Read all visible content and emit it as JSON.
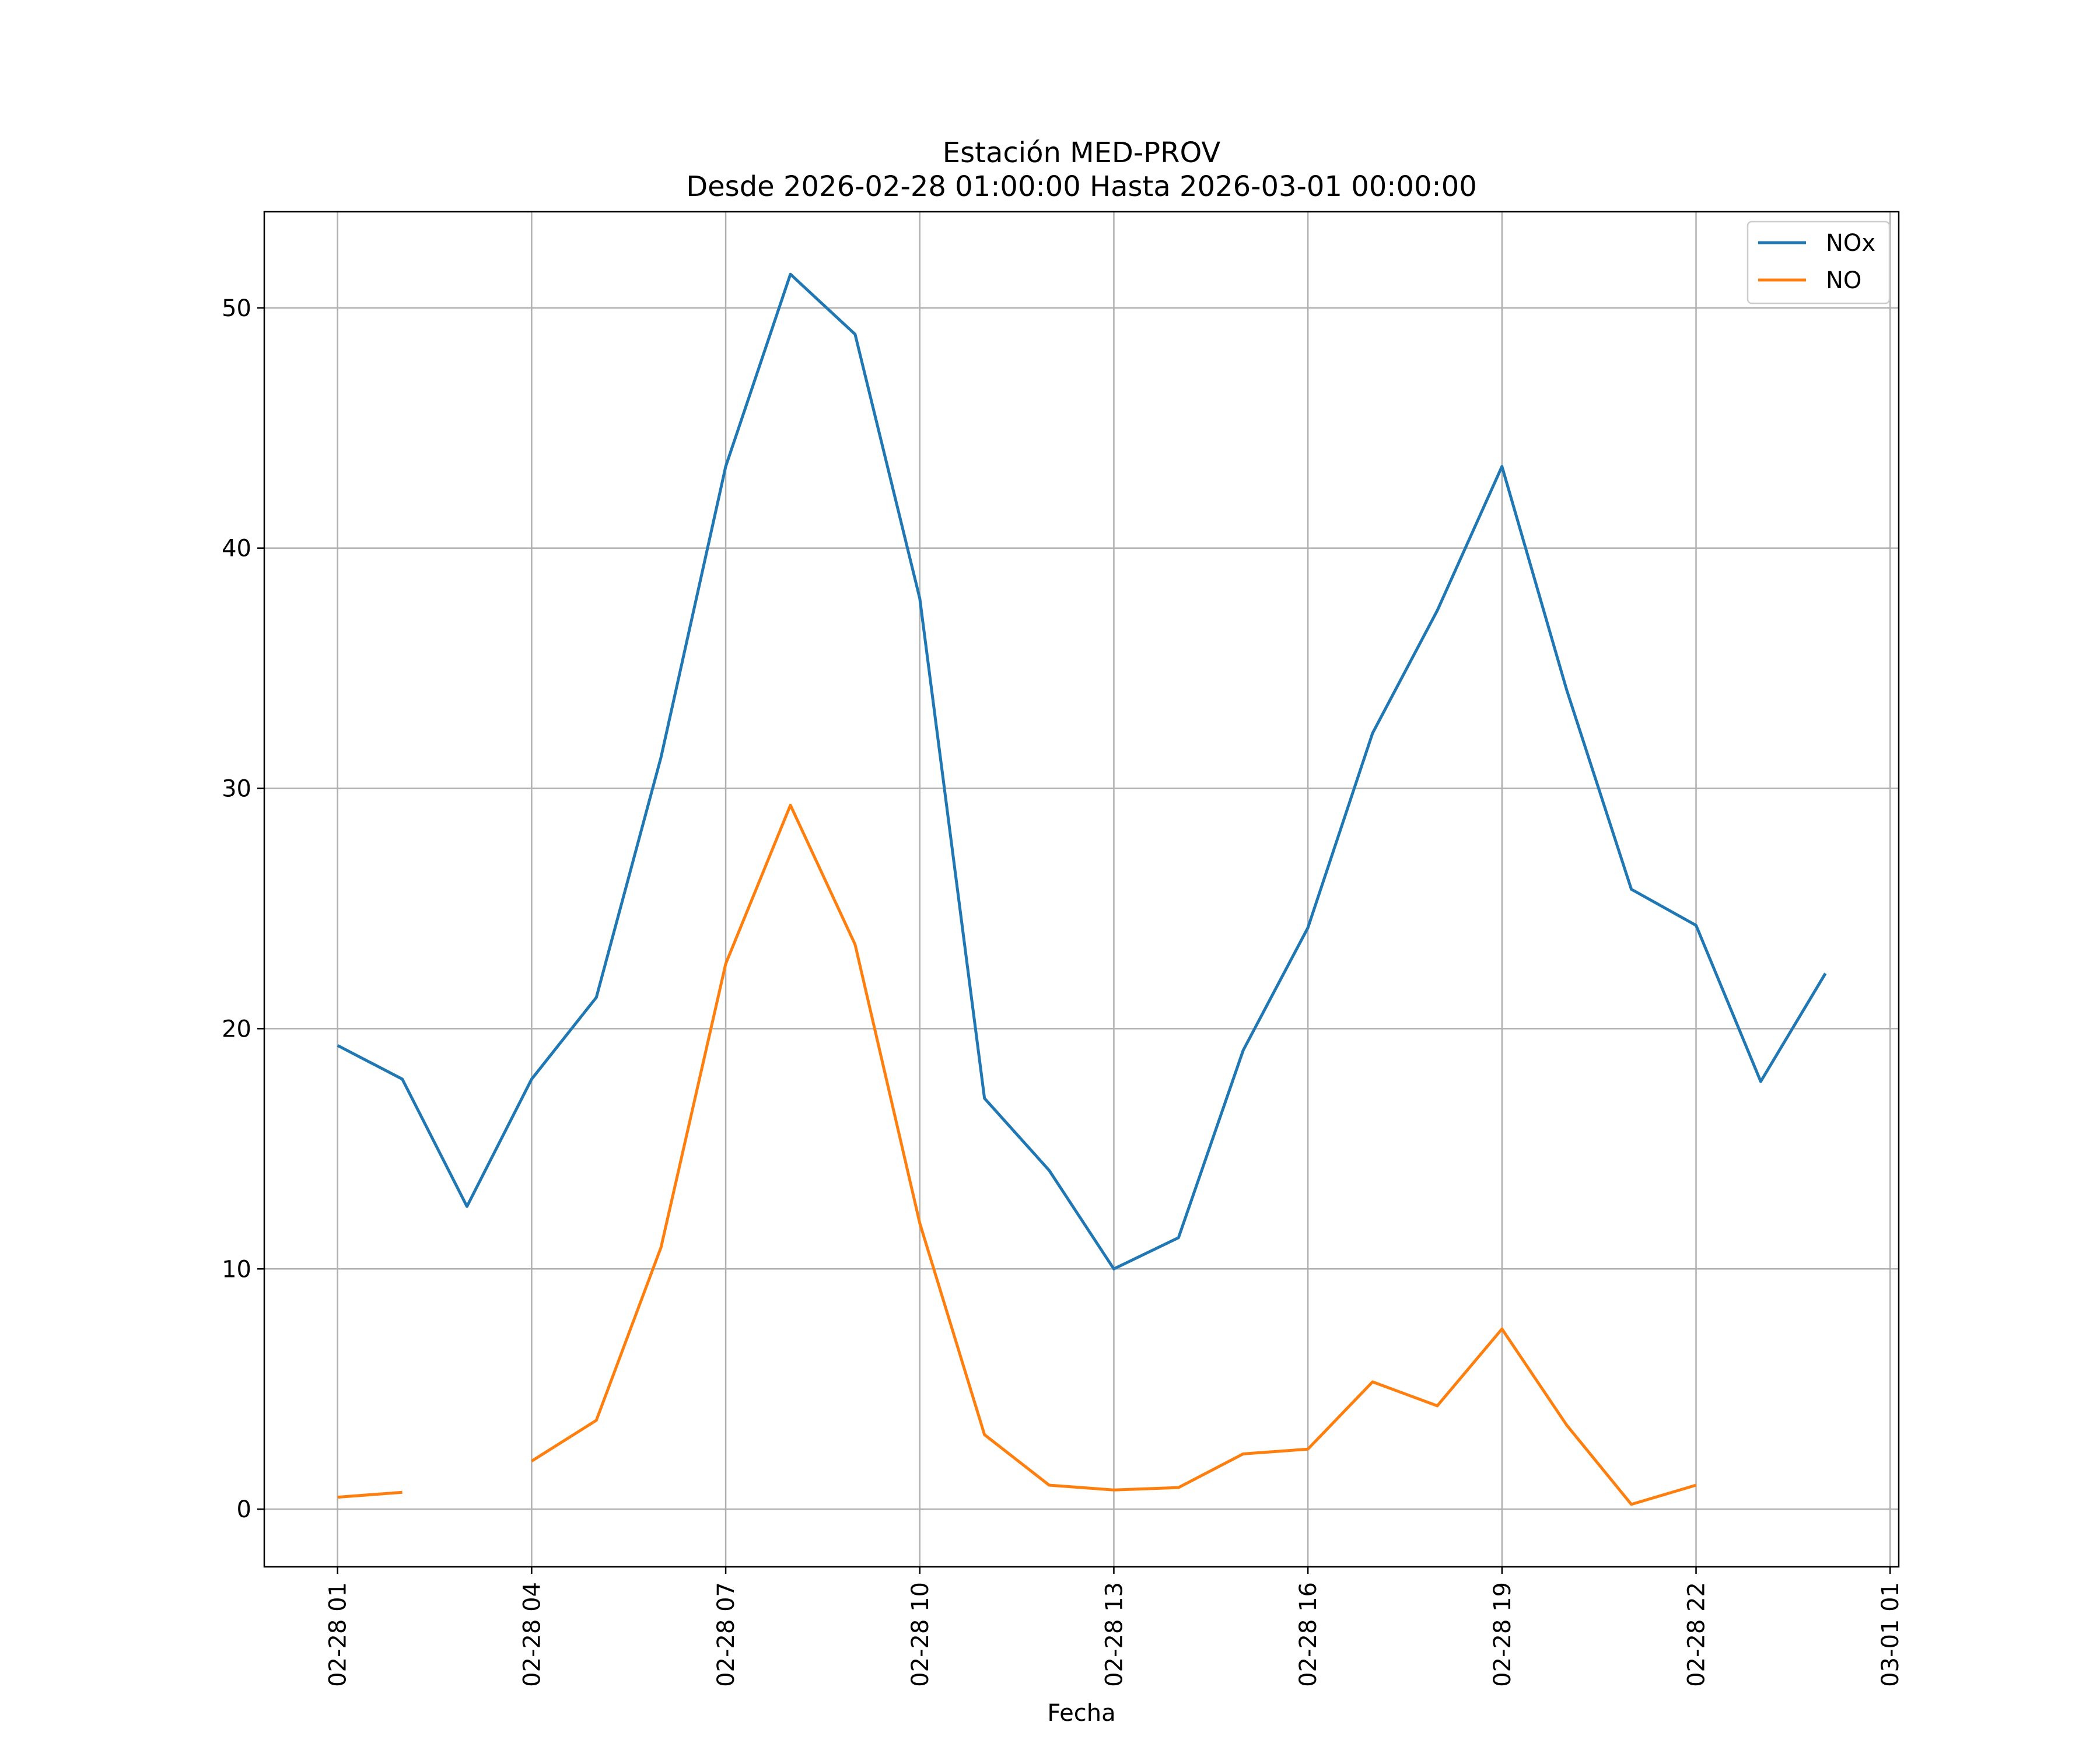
{
  "chart_data": {
    "type": "line",
    "title": [
      "Estación MED-PROV",
      "Desde 2026-02-28 01:00:00 Hasta 2026-03-01 00:00:00"
    ],
    "xlabel": "Fecha",
    "ylabel": "",
    "x": [
      "2026-02-28 01:00",
      "2026-02-28 02:00",
      "2026-02-28 03:00",
      "2026-02-28 04:00",
      "2026-02-28 05:00",
      "2026-02-28 06:00",
      "2026-02-28 07:00",
      "2026-02-28 08:00",
      "2026-02-28 09:00",
      "2026-02-28 10:00",
      "2026-02-28 11:00",
      "2026-02-28 12:00",
      "2026-02-28 13:00",
      "2026-02-28 14:00",
      "2026-02-28 15:00",
      "2026-02-28 16:00",
      "2026-02-28 17:00",
      "2026-02-28 18:00",
      "2026-02-28 19:00",
      "2026-02-28 20:00",
      "2026-02-28 21:00",
      "2026-02-28 22:00",
      "2026-02-28 23:00",
      "2026-03-01 00:00"
    ],
    "xlim": [
      "2026-02-27 23:52",
      "2026-03-01 01:08"
    ],
    "xticks": [
      "2026-02-28 01:00",
      "2026-02-28 04:00",
      "2026-02-28 07:00",
      "2026-02-28 10:00",
      "2026-02-28 13:00",
      "2026-02-28 16:00",
      "2026-02-28 19:00",
      "2026-02-28 22:00",
      "2026-03-01 01:00"
    ],
    "xtick_labels": [
      "02-28 01",
      "02-28 04",
      "02-28 07",
      "02-28 10",
      "02-28 13",
      "02-28 16",
      "02-28 19",
      "02-28 22",
      "03-01 01"
    ],
    "ylim": [
      -2.4,
      54
    ],
    "yticks": [
      0,
      10,
      20,
      30,
      40,
      50
    ],
    "ytick_labels": [
      "0",
      "10",
      "20",
      "30",
      "40",
      "50"
    ],
    "grid": true,
    "legend_position": "top-right",
    "series": [
      {
        "name": "NOx",
        "color": "#1f77b4",
        "values": [
          19.3,
          17.9,
          12.6,
          17.9,
          21.3,
          31.3,
          43.4,
          51.4,
          48.9,
          37.9,
          17.1,
          14.1,
          10.0,
          11.3,
          19.1,
          24.2,
          32.3,
          37.4,
          43.4,
          34.1,
          25.8,
          24.3,
          17.8,
          22.3
        ]
      },
      {
        "name": "NO",
        "color": "#ff7f0e",
        "values": [
          0.5,
          0.7,
          null,
          2.0,
          3.7,
          10.9,
          22.7,
          29.3,
          23.5,
          11.9,
          3.1,
          1.0,
          0.8,
          0.9,
          2.3,
          2.5,
          5.3,
          4.3,
          7.5,
          3.5,
          0.2,
          1.0,
          null,
          null
        ]
      }
    ]
  }
}
